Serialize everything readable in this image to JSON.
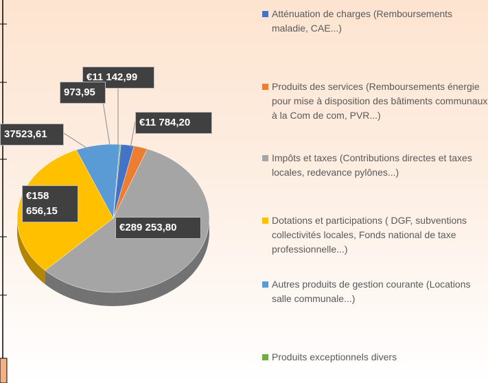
{
  "chart_data": {
    "type": "pie",
    "series": [
      {
        "name": "Atténuation de charges (Remboursements maladie, CAE...)",
        "color": "#4472c4",
        "values": [
          11142.99
        ],
        "value_labels": [
          "€11 142,99"
        ]
      },
      {
        "name": "Produits des services (Remboursements énergie pour mise à disposition des bâtiments communaux à la Com de com, PVR...)",
        "color": "#ed7d31",
        "values": [
          11784.2
        ],
        "value_labels": [
          "€11 784,20"
        ]
      },
      {
        "name": "Impôts et taxes (Contributions directes et taxes locales, redevance pylônes...)",
        "color": "#a5a5a5",
        "values": [
          289253.8
        ],
        "value_labels": [
          "€289 253,80"
        ]
      },
      {
        "name": "Dotations et participations ( DGF, subventions collectivités locales, Fonds national de taxe professionnelle...)",
        "color": "#ffc000",
        "values": [
          158656.15
        ],
        "value_labels": [
          "€158 656,15"
        ]
      },
      {
        "name": "Autres produits de gestion courante (Locations salle communale...)",
        "color": "#5b9bd5",
        "values": [
          37523.61
        ],
        "value_labels": [
          "37523,61"
        ]
      },
      {
        "name": "Produits exceptionnels divers",
        "color": "#70ad47",
        "values": [
          973.95
        ],
        "value_labels": [
          "973,95"
        ]
      }
    ]
  }
}
